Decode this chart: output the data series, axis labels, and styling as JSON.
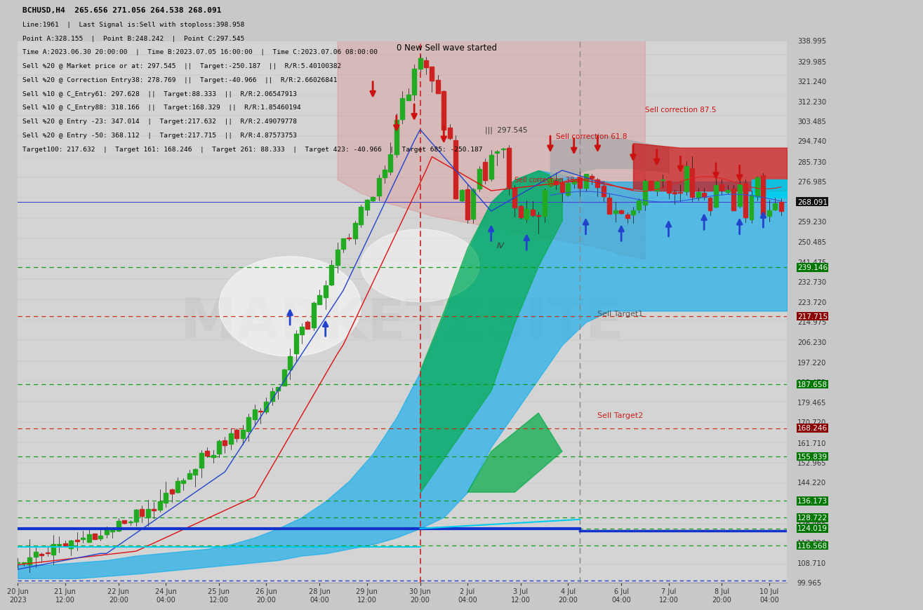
{
  "title": "BCHUSD,H4  265.656 271.056 264.538 268.091",
  "info_lines": [
    "Line:1961  |  Last Signal is:Sell with stoploss:398.958",
    "Point A:328.155  |  Point B:248.242  |  Point C:297.545",
    "Time A:2023.06.30 20:00:00  |  Time B:2023.07.05 16:00:00  |  Time C:2023.07.06 08:00:00",
    "Sell %20 @ Market price or at: 297.545  ||  Target:-250.187  ||  R/R:5.40100382",
    "Sell %20 @ Correction Entry38: 278.769  ||  Target:-40.966  ||  R/R:2.66026841",
    "Sell %10 @ C_Entry61: 297.628  ||  Target:88.333  ||  R/R:2.06547913",
    "Sell %10 @ C_Entry88: 318.166  ||  Target:168.329  ||  R/R:1.85460194",
    "Sell %20 @ Entry -23: 347.014  |  Target:217.632  ||  R/R:2.49079778",
    "Sell %20 @ Entry -50: 368.112  |  Target:217.715  ||  R/R:4.87573753",
    "Target100: 217.632  |  Target 161: 168.246  |  Target 261: 88.333  |  Target 423: -40.966  |  Target 685: -250.187"
  ],
  "y_min": 99.965,
  "y_max": 338.995,
  "current_price": 268.091,
  "green_levels": [
    239.146,
    187.658,
    155.839,
    136.173,
    128.722,
    124.019,
    116.568
  ],
  "dark_red_levels": [
    217.715,
    168.246
  ],
  "background_color": "#c8c8c8",
  "plot_bg": "#d4d4d4",
  "watermark": "MARKETZSITE",
  "tick_positions": [
    0,
    8,
    17,
    25,
    34,
    42,
    51,
    59,
    68,
    76,
    85,
    93,
    102,
    110,
    119,
    127
  ],
  "tick_labels": [
    "20 Jun\n2023",
    "21 Jun\n12:00",
    "22 Jun\n20:00",
    "24 Jun\n04:00",
    "25 Jun\n12:00",
    "26 Jun\n20:00",
    "28 Jun\n04:00",
    "29 Jun\n12:00",
    "30 Jun\n20:00",
    "2 Jul\n04:00",
    "3 Jul\n12:00",
    "4 Jul\n20:00",
    "6 Jul\n04:00",
    "7 Jul\n12:00",
    "8 Jul\n20:00",
    "10 Jul\n04:00"
  ],
  "right_ticks": [
    338.995,
    329.985,
    321.24,
    312.23,
    303.485,
    294.74,
    285.73,
    276.985,
    259.23,
    250.485,
    241.475,
    232.73,
    223.72,
    214.975,
    206.23,
    197.22,
    188.475,
    179.465,
    170.72,
    161.71,
    152.965,
    144.22,
    135.475,
    126.465,
    117.72,
    108.71,
    99.965
  ]
}
